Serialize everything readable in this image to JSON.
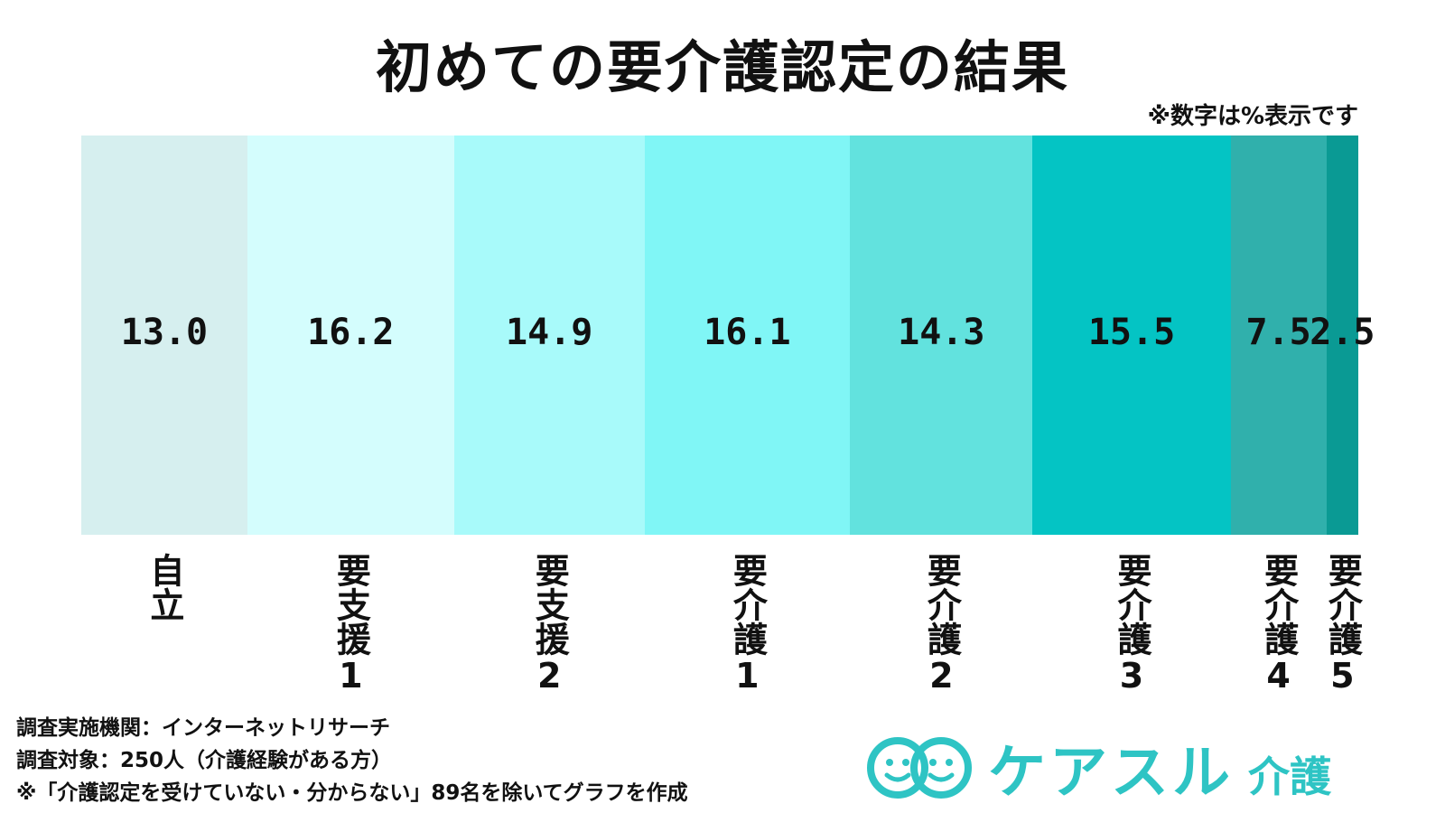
{
  "title": "初めての要介護認定の結果",
  "unit_note": "※数字は%表示です",
  "chart_data": {
    "type": "bar",
    "orientation": "horizontal-stacked-100",
    "categories": [
      "自立",
      "要支援1",
      "要支援2",
      "要介護1",
      "要介護2",
      "要介護3",
      "要介護4",
      "要介護5"
    ],
    "values": [
      13.0,
      16.2,
      14.9,
      16.1,
      14.3,
      15.5,
      7.5,
      2.5
    ],
    "value_labels": [
      "13.0",
      "16.2",
      "14.9",
      "16.1",
      "14.3",
      "15.5",
      "7.5",
      "2.5"
    ],
    "colors": [
      "#d6efef",
      "#d4fdfd",
      "#a8fafa",
      "#80f6f6",
      "#62e2de",
      "#04c4c4",
      "#30b0ac",
      "#0a9a94"
    ]
  },
  "notes": [
    "調査実施機関：インターネットリサーチ",
    "調査対象：250人（介護経験がある方）",
    "※「介護認定を受けていない・分からない」89名を除いてグラフを作成"
  ],
  "logo": {
    "name": "ケアスル",
    "sub": "介護",
    "color": "#2ec4c4"
  }
}
